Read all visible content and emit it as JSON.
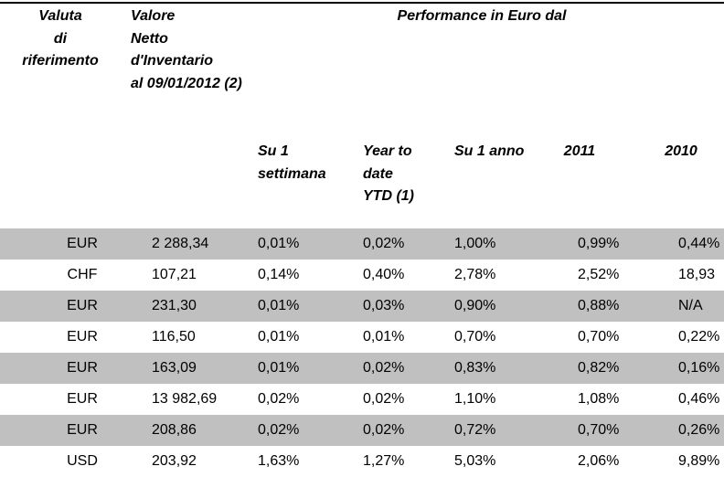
{
  "table": {
    "header": {
      "currency": [
        "Valuta",
        "di",
        "riferimento"
      ],
      "nav": [
        "Valore",
        "Netto",
        "d'Inventario",
        "al 09/01/2012 (2)"
      ],
      "performance": "Performance in Euro dal"
    },
    "subheader": [
      [
        "Su 1",
        "settimana"
      ],
      [
        "Year to",
        "date",
        "YTD (1)"
      ],
      [
        "Su 1 anno"
      ],
      [
        "2011"
      ],
      [
        "2010"
      ]
    ],
    "rows": [
      [
        "EUR",
        "2 288,34",
        "0,01%",
        "0,02%",
        "1,00%",
        "0,99%",
        "0,44%"
      ],
      [
        "CHF",
        "107,21",
        "0,14%",
        "0,40%",
        "2,78%",
        "2,52%",
        "18,93"
      ],
      [
        "EUR",
        "231,30",
        "0,01%",
        "0,03%",
        "0,90%",
        "0,88%",
        "N/A"
      ],
      [
        "EUR",
        "116,50",
        "0,01%",
        "0,01%",
        "0,70%",
        "0,70%",
        "0,22%"
      ],
      [
        "EUR",
        "163,09",
        "0,01%",
        "0,02%",
        "0,83%",
        "0,82%",
        "0,16%"
      ],
      [
        "EUR",
        "13 982,69",
        "0,02%",
        "0,02%",
        "1,10%",
        "1,08%",
        "0,46%"
      ],
      [
        "EUR",
        "208,86",
        "0,02%",
        "0,02%",
        "0,72%",
        "0,70%",
        "0,26%"
      ],
      [
        "USD",
        "203,92",
        "1,63%",
        "1,27%",
        "5,03%",
        "2,06%",
        "9,89%"
      ]
    ]
  }
}
